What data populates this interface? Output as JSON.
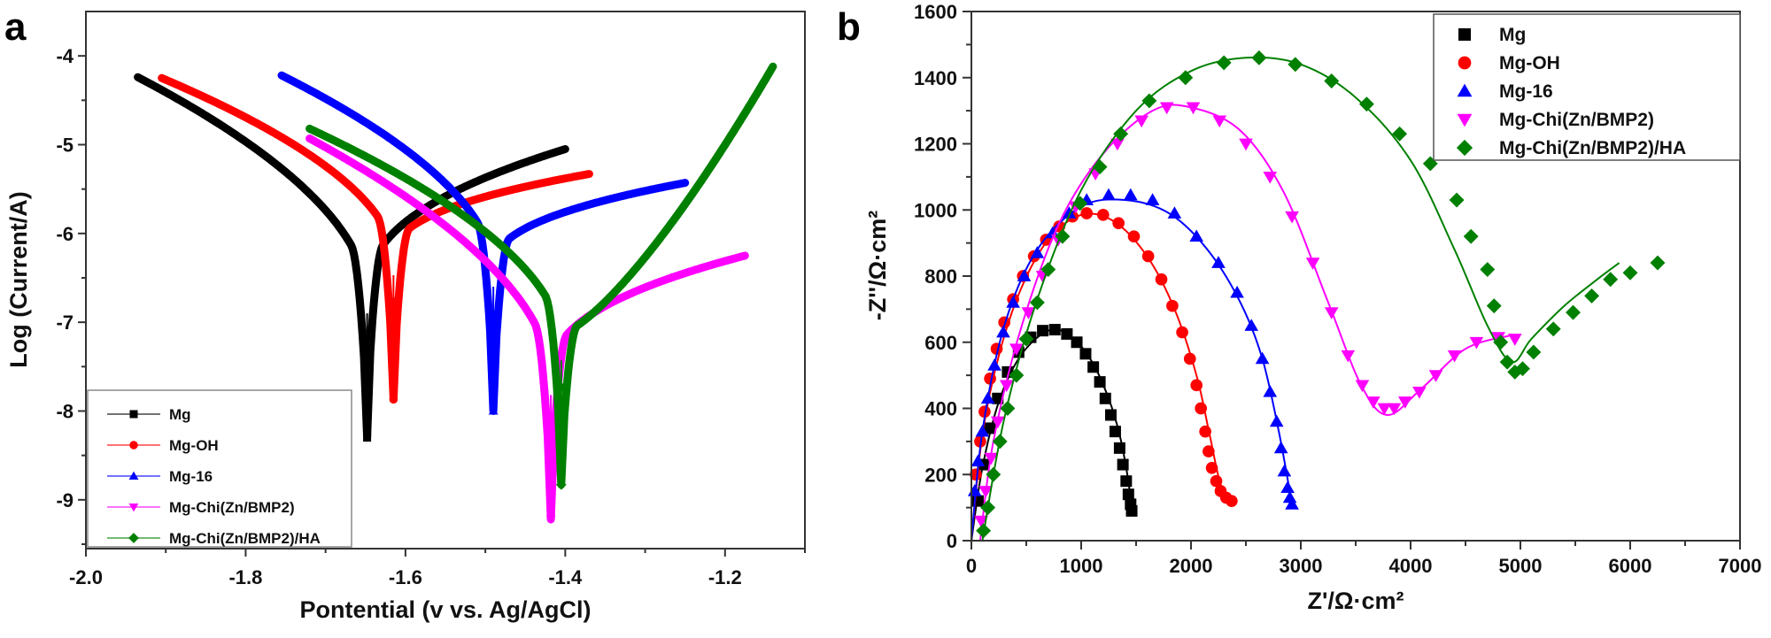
{
  "figure": {
    "panels": [
      "a",
      "b"
    ]
  },
  "chart_data": [
    {
      "type": "line",
      "panel_label": "a",
      "title": "",
      "xlabel": "Pontential (v vs. Ag/AgCl)",
      "ylabel": "Log (Current/A)",
      "xlim": [
        -2.0,
        -1.1
      ],
      "ylim": [
        -9.55,
        -3.5
      ],
      "x_ticks": [
        -2.0,
        -1.8,
        -1.6,
        -1.4,
        -1.2
      ],
      "x_tick_labels": [
        "-2.0",
        "-1.8",
        "-1.6",
        "-1.4",
        "-1.2"
      ],
      "y_ticks": [
        -4,
        -5,
        -6,
        -7,
        -8,
        -9
      ],
      "y_tick_labels": [
        "-4",
        "-5",
        "-6",
        "-7",
        "-8",
        "-9"
      ],
      "grid": false,
      "legend_position": "bottom-left",
      "series": [
        {
          "name": "Mg",
          "color": "#000000",
          "marker": "square",
          "cathodic": {
            "start": [
              -1.935,
              -4.24
            ],
            "ecorr": -1.648,
            "min_log_i": -8.3
          },
          "anodic": {
            "end": [
              -1.4,
              -5.05
            ]
          }
        },
        {
          "name": "Mg-OH",
          "color": "#ff0000",
          "marker": "circle",
          "cathodic": {
            "start": [
              -1.905,
              -4.25
            ],
            "ecorr": -1.615,
            "min_log_i": -7.87
          },
          "anodic": {
            "end": [
              -1.37,
              -5.33
            ]
          }
        },
        {
          "name": "Mg-16",
          "color": "#0000ff",
          "marker": "triangle-up",
          "cathodic": {
            "start": [
              -1.755,
              -4.22
            ],
            "ecorr": -1.49,
            "min_log_i": -8.0
          },
          "anodic": {
            "end": [
              -1.25,
              -5.43
            ]
          }
        },
        {
          "name": "Mg-Chi(Zn/BMP2)",
          "color": "#ff00ff",
          "marker": "triangle-down",
          "cathodic": {
            "start": [
              -1.72,
              -4.93
            ],
            "ecorr": -1.418,
            "min_log_i": -9.22
          },
          "anodic": {
            "end": [
              -1.175,
              -6.25
            ]
          }
        },
        {
          "name": "Mg-Chi(Zn/BMP2)/HA",
          "color": "#008000",
          "marker": "diamond",
          "cathodic": {
            "start": [
              -1.72,
              -4.82
            ],
            "ecorr": -1.405,
            "min_log_i": -8.83
          },
          "anodic": {
            "end": [
              -1.14,
              -4.12
            ]
          }
        }
      ]
    },
    {
      "type": "scatter",
      "panel_label": "b",
      "title": "",
      "xlabel": "Z'/Ω·cm²",
      "ylabel": "-Z''/Ω·cm²",
      "xlim": [
        0,
        7000
      ],
      "ylim": [
        0,
        1600
      ],
      "x_ticks": [
        0,
        1000,
        2000,
        3000,
        4000,
        5000,
        6000,
        7000
      ],
      "x_tick_labels": [
        "0",
        "1000",
        "2000",
        "3000",
        "4000",
        "5000",
        "6000",
        "7000"
      ],
      "y_ticks": [
        0,
        200,
        400,
        600,
        800,
        1000,
        1200,
        1400,
        1600
      ],
      "y_tick_labels": [
        "0",
        "200",
        "400",
        "600",
        "800",
        "1000",
        "1200",
        "1400",
        "1600"
      ],
      "grid": false,
      "legend_position": "top-right",
      "series": [
        {
          "name": "Mg",
          "color": "#000000",
          "marker": "square",
          "points": [
            [
              60,
              120
            ],
            [
              110,
              230
            ],
            [
              170,
              340
            ],
            [
              240,
              430
            ],
            [
              330,
              510
            ],
            [
              430,
              570
            ],
            [
              540,
              615
            ],
            [
              650,
              635
            ],
            [
              760,
              638
            ],
            [
              870,
              625
            ],
            [
              960,
              600
            ],
            [
              1040,
              565
            ],
            [
              1110,
              525
            ],
            [
              1170,
              480
            ],
            [
              1220,
              430
            ],
            [
              1270,
              380
            ],
            [
              1310,
              330
            ],
            [
              1350,
              280
            ],
            [
              1380,
              230
            ],
            [
              1410,
              180
            ],
            [
              1430,
              140
            ],
            [
              1450,
              110
            ],
            [
              1460,
              90
            ]
          ],
          "fit": [
            [
              0,
              0
            ],
            [
              100,
              220
            ],
            [
              250,
              420
            ],
            [
              450,
              560
            ],
            [
              700,
              635
            ],
            [
              900,
              620
            ],
            [
              1100,
              540
            ],
            [
              1250,
              430
            ],
            [
              1350,
              320
            ],
            [
              1420,
              200
            ],
            [
              1460,
              100
            ]
          ]
        },
        {
          "name": "Mg-OH",
          "color": "#ff0000",
          "marker": "circle",
          "points": [
            [
              40,
              200
            ],
            [
              80,
              300
            ],
            [
              120,
              390
            ],
            [
              170,
              490
            ],
            [
              230,
              580
            ],
            [
              300,
              660
            ],
            [
              380,
              730
            ],
            [
              470,
              800
            ],
            [
              570,
              860
            ],
            [
              680,
              910
            ],
            [
              800,
              950
            ],
            [
              920,
              980
            ],
            [
              1050,
              990
            ],
            [
              1200,
              985
            ],
            [
              1340,
              960
            ],
            [
              1480,
              920
            ],
            [
              1610,
              860
            ],
            [
              1730,
              790
            ],
            [
              1830,
              710
            ],
            [
              1920,
              630
            ],
            [
              1990,
              550
            ],
            [
              2050,
              470
            ],
            [
              2090,
              400
            ],
            [
              2130,
              330
            ],
            [
              2160,
              270
            ],
            [
              2190,
              220
            ],
            [
              2230,
              180
            ],
            [
              2270,
              150
            ],
            [
              2320,
              130
            ],
            [
              2370,
              120
            ]
          ],
          "fit": [
            [
              0,
              0
            ],
            [
              100,
              320
            ],
            [
              250,
              560
            ],
            [
              450,
              760
            ],
            [
              700,
              910
            ],
            [
              1000,
              985
            ],
            [
              1300,
              965
            ],
            [
              1600,
              860
            ],
            [
              1850,
              700
            ],
            [
              2050,
              500
            ],
            [
              2170,
              320
            ],
            [
              2270,
              170
            ],
            [
              2370,
              120
            ]
          ]
        },
        {
          "name": "Mg-16",
          "color": "#0000ff",
          "marker": "triangle-up",
          "points": [
            [
              30,
              150
            ],
            [
              60,
              240
            ],
            [
              100,
              330
            ],
            [
              150,
              430
            ],
            [
              210,
              530
            ],
            [
              290,
              630
            ],
            [
              380,
              720
            ],
            [
              480,
              800
            ],
            [
              600,
              870
            ],
            [
              740,
              930
            ],
            [
              890,
              990
            ],
            [
              1050,
              1030
            ],
            [
              1250,
              1045
            ],
            [
              1450,
              1045
            ],
            [
              1650,
              1030
            ],
            [
              1850,
              990
            ],
            [
              2050,
              920
            ],
            [
              2250,
              840
            ],
            [
              2420,
              750
            ],
            [
              2550,
              650
            ],
            [
              2650,
              550
            ],
            [
              2720,
              450
            ],
            [
              2780,
              360
            ],
            [
              2820,
              280
            ],
            [
              2850,
              210
            ],
            [
              2880,
              160
            ],
            [
              2900,
              130
            ],
            [
              2920,
              110
            ]
          ],
          "fit": [
            [
              0,
              0
            ],
            [
              100,
              330
            ],
            [
              300,
              650
            ],
            [
              600,
              880
            ],
            [
              1000,
              1010
            ],
            [
              1400,
              1030
            ],
            [
              1800,
              990
            ],
            [
              2150,
              880
            ],
            [
              2450,
              720
            ],
            [
              2650,
              550
            ],
            [
              2800,
              330
            ],
            [
              2920,
              110
            ]
          ]
        },
        {
          "name": "Mg-Chi(Zn/BMP2)",
          "color": "#ff00ff",
          "marker": "triangle-down",
          "points": [
            [
              90,
              60
            ],
            [
              130,
              150
            ],
            [
              180,
              250
            ],
            [
              240,
              360
            ],
            [
              320,
              470
            ],
            [
              410,
              580
            ],
            [
              520,
              690
            ],
            [
              650,
              800
            ],
            [
              790,
              910
            ],
            [
              950,
              1010
            ],
            [
              1130,
              1110
            ],
            [
              1330,
              1200
            ],
            [
              1550,
              1270
            ],
            [
              1780,
              1310
            ],
            [
              2020,
              1310
            ],
            [
              2260,
              1270
            ],
            [
              2500,
              1200
            ],
            [
              2720,
              1100
            ],
            [
              2920,
              980
            ],
            [
              3110,
              840
            ],
            [
              3280,
              690
            ],
            [
              3430,
              560
            ],
            [
              3560,
              470
            ],
            [
              3660,
              420
            ],
            [
              3760,
              400
            ],
            [
              3850,
              400
            ],
            [
              3950,
              420
            ],
            [
              4080,
              450
            ],
            [
              4230,
              500
            ],
            [
              4400,
              560
            ],
            [
              4600,
              600
            ],
            [
              4800,
              615
            ],
            [
              4950,
              610
            ]
          ],
          "fit": [
            [
              80,
              0
            ],
            [
              200,
              300
            ],
            [
              450,
              640
            ],
            [
              800,
              960
            ],
            [
              1200,
              1170
            ],
            [
              1650,
              1300
            ],
            [
              2000,
              1310
            ],
            [
              2450,
              1240
            ],
            [
              2850,
              1050
            ],
            [
              3250,
              720
            ],
            [
              3550,
              470
            ],
            [
              3790,
              380
            ],
            [
              4100,
              460
            ],
            [
              4500,
              580
            ],
            [
              4900,
              620
            ]
          ]
        },
        {
          "name": "Mg-Chi(Zn/BMP2)/HA",
          "color": "#008000",
          "marker": "diamond",
          "points": [
            [
              110,
              30
            ],
            [
              150,
              100
            ],
            [
              200,
              200
            ],
            [
              260,
              300
            ],
            [
              330,
              400
            ],
            [
              410,
              500
            ],
            [
              500,
              610
            ],
            [
              600,
              720
            ],
            [
              700,
              820
            ],
            [
              830,
              920
            ],
            [
              990,
              1020
            ],
            [
              1170,
              1130
            ],
            [
              1360,
              1230
            ],
            [
              1620,
              1330
            ],
            [
              1950,
              1400
            ],
            [
              2300,
              1445
            ],
            [
              2620,
              1460
            ],
            [
              2950,
              1440
            ],
            [
              3280,
              1390
            ],
            [
              3600,
              1320
            ],
            [
              3900,
              1230
            ],
            [
              4180,
              1140
            ],
            [
              4420,
              1030
            ],
            [
              4550,
              920
            ],
            [
              4700,
              820
            ],
            [
              4760,
              710
            ],
            [
              4820,
              600
            ],
            [
              4880,
              540
            ],
            [
              4950,
              510
            ],
            [
              5020,
              520
            ],
            [
              5120,
              570
            ],
            [
              5300,
              640
            ],
            [
              5480,
              690
            ],
            [
              5650,
              740
            ],
            [
              5820,
              790
            ],
            [
              6000,
              810
            ],
            [
              6250,
              840
            ]
          ],
          "fit": [
            [
              100,
              0
            ],
            [
              300,
              370
            ],
            [
              600,
              730
            ],
            [
              1000,
              1060
            ],
            [
              1500,
              1300
            ],
            [
              2000,
              1420
            ],
            [
              2500,
              1460
            ],
            [
              3000,
              1440
            ],
            [
              3500,
              1340
            ],
            [
              4000,
              1150
            ],
            [
              4400,
              880
            ],
            [
              4700,
              650
            ],
            [
              4920,
              540
            ],
            [
              5100,
              610
            ],
            [
              5400,
              710
            ],
            [
              5700,
              790
            ],
            [
              5900,
              840
            ]
          ]
        }
      ]
    }
  ]
}
